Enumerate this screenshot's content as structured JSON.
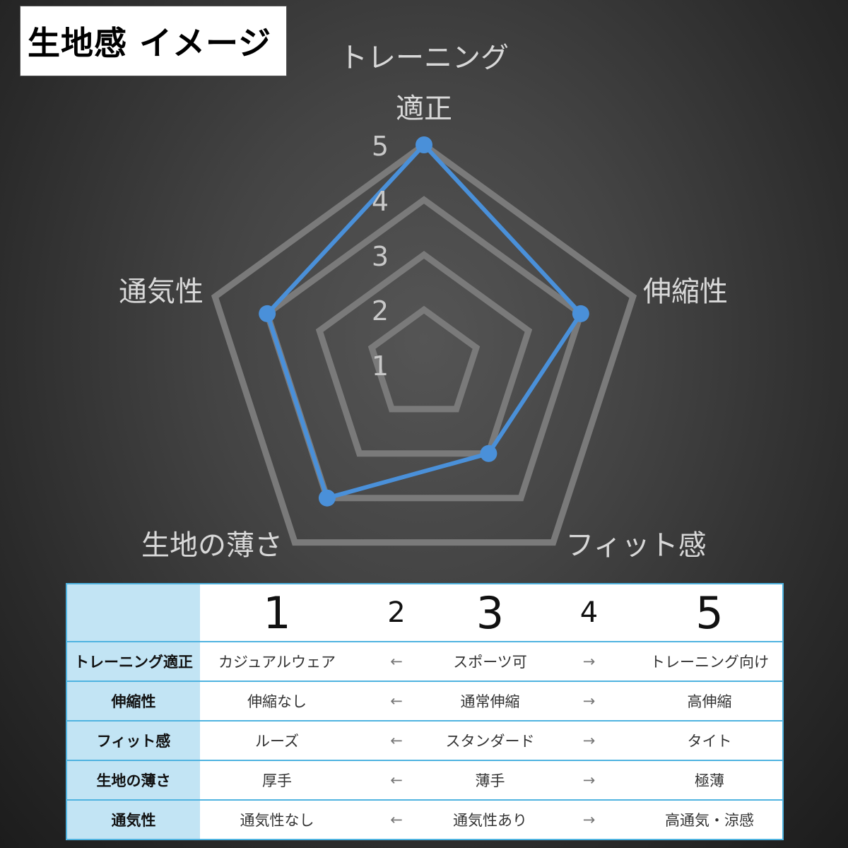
{
  "title": "生地感 イメージ",
  "chart_data": {
    "type": "radar",
    "axes": [
      "トレーニング適正",
      "伸縮性",
      "フィット感",
      "生地の薄さ",
      "通気性"
    ],
    "axis_labels": [
      [
        "トレーニング",
        "適正"
      ],
      [
        "伸縮性"
      ],
      [
        "フィット感"
      ],
      [
        "生地の薄さ"
      ],
      [
        "通気性"
      ]
    ],
    "values": [
      5,
      4,
      3,
      4,
      4
    ],
    "range": [
      1,
      5
    ],
    "ticks": [
      "1",
      "2",
      "3",
      "4",
      "5"
    ],
    "series_color": "#4a90d9",
    "grid_color": "#7a7a7a"
  },
  "table": {
    "header": [
      "",
      "1",
      "2",
      "3",
      "4",
      "5"
    ],
    "rows": [
      [
        "トレーニング適正",
        "カジュアルウェア",
        "←",
        "スポーツ可",
        "→",
        "トレーニング向け"
      ],
      [
        "伸縮性",
        "伸縮なし",
        "←",
        "通常伸縮",
        "→",
        "高伸縮"
      ],
      [
        "フィット感",
        "ルーズ",
        "←",
        "スタンダード",
        "→",
        "タイト"
      ],
      [
        "生地の薄さ",
        "厚手",
        "←",
        "薄手",
        "→",
        "極薄"
      ],
      [
        "通気性",
        "通気性なし",
        "←",
        "通気性あり",
        "→",
        "高通気・涼感"
      ]
    ]
  }
}
